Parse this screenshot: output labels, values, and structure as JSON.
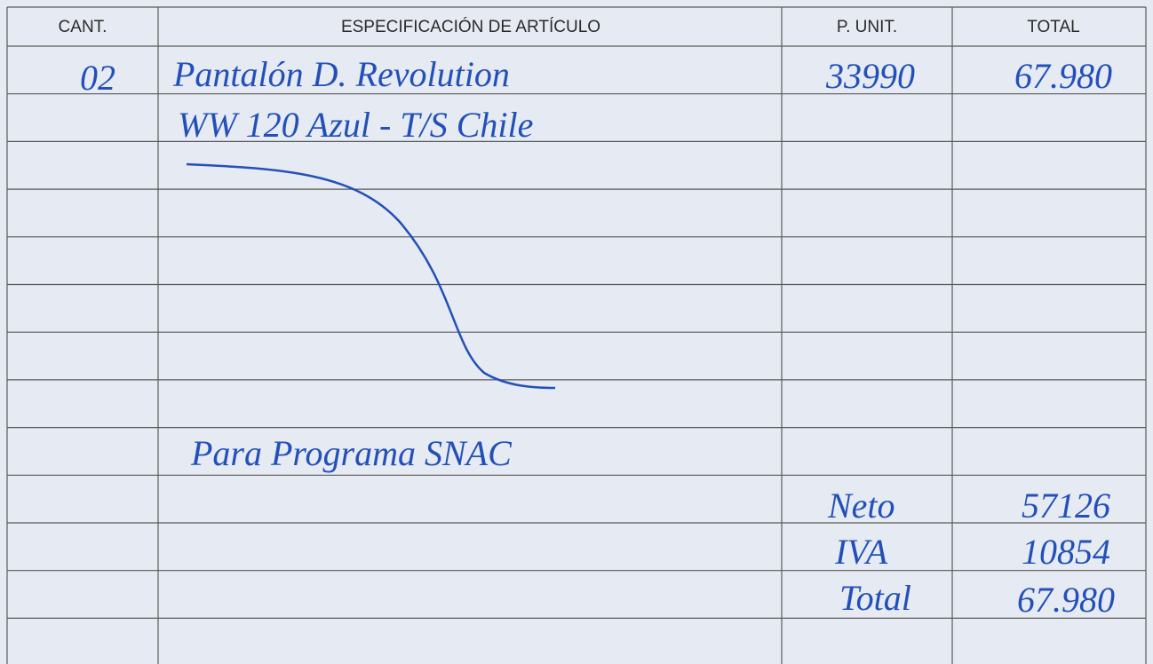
{
  "table": {
    "headers": [
      "CANT.",
      "ESPECIFICACIÓN DE ARTÍCULO",
      "P. UNIT.",
      "TOTAL"
    ],
    "items": [
      {
        "quantity": "02",
        "description": "Pantalón D. Revolution",
        "unit_price": "33990",
        "total": "67.980"
      }
    ],
    "description_continuation": "WW 120 Azul - T/S Chile",
    "note": "Para Programa SNAC",
    "summary": [
      {
        "label": "Neto",
        "value": "57126"
      },
      {
        "label": "IVA",
        "value": "10854"
      },
      {
        "label": "Total",
        "value": "67.980"
      }
    ]
  }
}
